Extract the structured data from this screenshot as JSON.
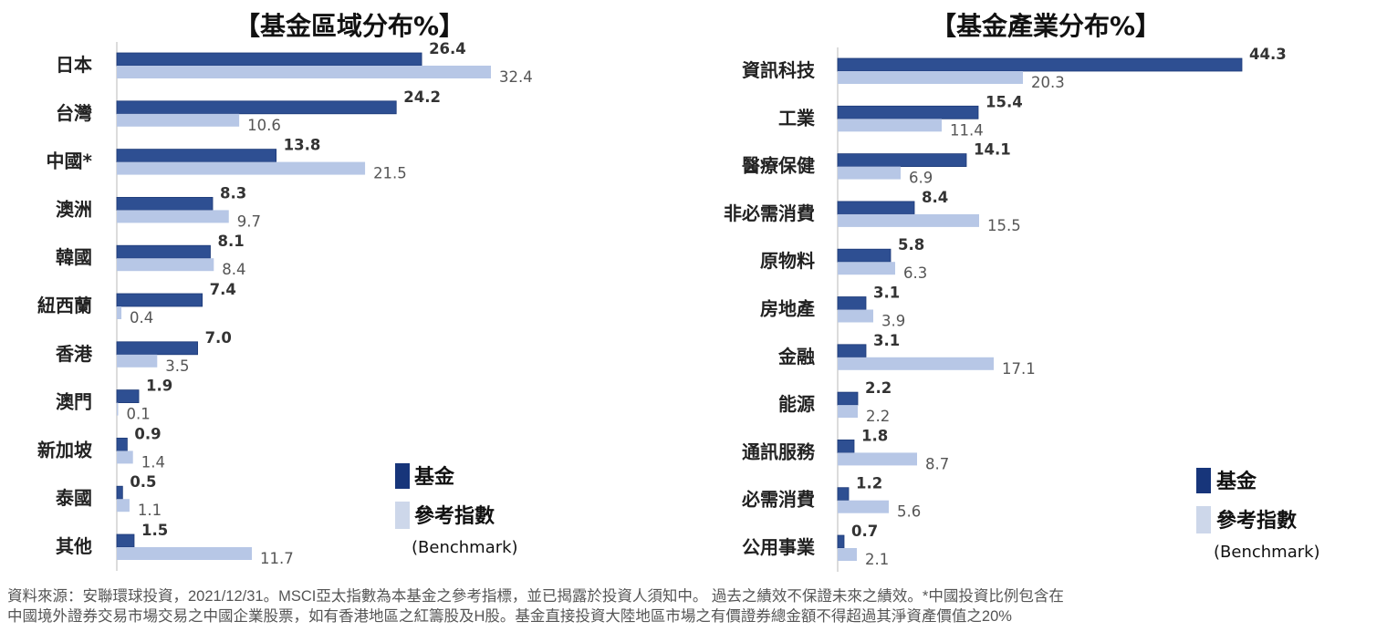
{
  "colors": {
    "fund": "#2E4F92",
    "fund_legend": "#17357A",
    "benchmark": "#B7C7E6",
    "benchmark_legend": "#CDD7EA",
    "axis": "#D0D0D0",
    "label": "#222222",
    "value": "#333333",
    "bench_value": "#555555"
  },
  "chart_data": [
    {
      "type": "bar",
      "orientation": "horizontal",
      "title": "【基金區域分布%】",
      "categories": [
        "日本",
        "台灣",
        "中國*",
        "澳洲",
        "韓國",
        "紐西蘭",
        "香港",
        "澳門",
        "新加坡",
        "泰國",
        "其他"
      ],
      "series": [
        {
          "name": "基金",
          "values": [
            26.4,
            24.2,
            13.8,
            8.3,
            8.1,
            7.4,
            7.0,
            1.9,
            0.9,
            0.5,
            1.5
          ],
          "labels": [
            "26.4",
            "24.2",
            "13.8",
            "8.3",
            "8.1",
            "7.4",
            "7.0",
            "1.9",
            "0.9",
            "0.5",
            "1.5"
          ]
        },
        {
          "name": "參考指數",
          "values": [
            32.4,
            10.6,
            21.5,
            9.7,
            8.4,
            0.4,
            3.5,
            0.1,
            1.4,
            1.1,
            11.7
          ],
          "labels": [
            "32.4",
            "10.6",
            "21.5",
            "9.7",
            "8.4",
            "0.4",
            "3.5",
            "0.1",
            "1.4",
            "1.1",
            "11.7"
          ]
        }
      ],
      "legend": {
        "fund": "基金",
        "benchmark": "參考指數",
        "benchmark_sub": "(Benchmark)",
        "position": "bottom-right"
      },
      "xlim": [
        0,
        32.4
      ],
      "grid": false
    },
    {
      "type": "bar",
      "orientation": "horizontal",
      "title": "【基金產業分布%】",
      "categories": [
        "資訊科技",
        "工業",
        "醫療保健",
        "非必需消費",
        "原物料",
        "房地產",
        "金融",
        "能源",
        "通訊服務",
        "必需消費",
        "公用事業"
      ],
      "series": [
        {
          "name": "基金",
          "values": [
            44.3,
            15.4,
            14.1,
            8.4,
            5.8,
            3.1,
            3.1,
            2.2,
            1.8,
            1.2,
            0.7
          ],
          "labels": [
            "44.3",
            "15.4",
            "14.1",
            "8.4",
            "5.8",
            "3.1",
            "3.1",
            "2.2",
            "1.8",
            "1.2",
            "0.7"
          ]
        },
        {
          "name": "參考指數",
          "values": [
            20.3,
            11.4,
            6.9,
            15.5,
            6.3,
            3.9,
            17.1,
            2.2,
            8.7,
            5.6,
            2.1
          ],
          "labels": [
            "20.3",
            "11.4",
            "6.9",
            "15.5",
            "6.3",
            "3.9",
            "17.1",
            "2.2",
            "8.7",
            "5.6",
            "2.1"
          ]
        }
      ],
      "legend": {
        "fund": "基金",
        "benchmark": "參考指數",
        "benchmark_sub": "(Benchmark)",
        "position": "bottom-right"
      },
      "xlim": [
        0,
        44.3
      ],
      "grid": false
    }
  ],
  "footnote": {
    "line1": "資料來源：安聯環球投資，2021/12/31。MSCI亞太指數為本基金之參考指標，並已揭露於投資人須知中。 過去之績效不保證未來之績效。*中國投資比例包含在",
    "line2": "中國境外證券交易市場交易之中國企業股票，如有香港地區之紅籌股及H股。基金直接投資大陸地區市場之有價證券總金額不得超過其淨資產價值之20%"
  }
}
